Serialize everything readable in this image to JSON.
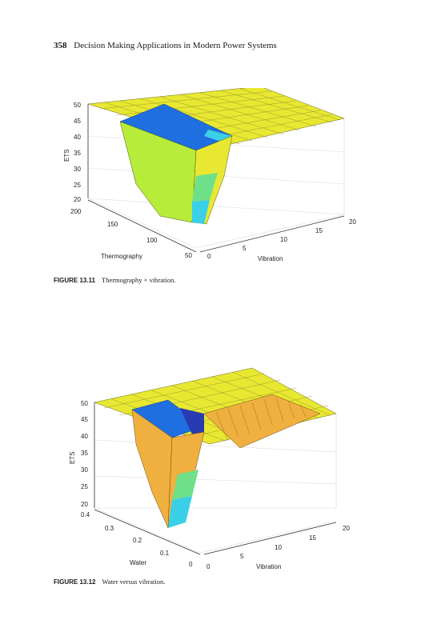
{
  "header": {
    "page_number": "358",
    "running_title": "Decision Making Applications in Modern Power Systems"
  },
  "figures": [
    {
      "caption_number": "FIGURE 13.11",
      "caption_text": "Thermography × vibration.",
      "zlabel": "ETS",
      "xlabel": "Thermography",
      "ylabel": "Vibration",
      "z_ticks": [
        "50",
        "45",
        "40",
        "35",
        "30",
        "25",
        "20"
      ],
      "x_ticks": [
        "200",
        "150",
        "100",
        "50"
      ],
      "y_ticks": [
        "0",
        "5",
        "10",
        "15",
        "20"
      ]
    },
    {
      "caption_number": "FIGURE 13.12",
      "caption_text": "Water versus vibration.",
      "zlabel": "ETS",
      "xlabel": "Water",
      "ylabel": "Vibration",
      "z_ticks": [
        "50",
        "45",
        "40",
        "35",
        "30",
        "25",
        "20"
      ],
      "x_ticks": [
        "0.4",
        "0.3",
        "0.2",
        "0.1",
        "0"
      ],
      "y_ticks": [
        "0",
        "5",
        "10",
        "15",
        "20"
      ]
    }
  ],
  "colors": {
    "surface_top": "#e8e832",
    "pit_blue": "#1f6fe0",
    "pit_deep": "#2a3ab0",
    "wall_green": "#b8ec3a",
    "wall_orange": "#f0b040",
    "low_cyan": "#3ad0e8",
    "mid_green": "#6ee08a"
  },
  "chart_data": [
    {
      "type": "surface",
      "title": "",
      "x_axis": "Thermography",
      "y_axis": "Vibration",
      "z_axis": "ETS",
      "xlim": [
        50,
        200
      ],
      "ylim": [
        0,
        20
      ],
      "zlim": [
        20,
        50
      ],
      "grid": true,
      "description_values": {
        "plateau_z": 50,
        "pit_min_z": 20
      }
    },
    {
      "type": "surface",
      "title": "",
      "x_axis": "Water",
      "y_axis": "Vibration",
      "z_axis": "ETS",
      "xlim": [
        0,
        0.4
      ],
      "ylim": [
        0,
        20
      ],
      "zlim": [
        20,
        50
      ],
      "grid": true,
      "description_values": {
        "plateau_z": 50,
        "pit_min_z": 20
      }
    }
  ]
}
